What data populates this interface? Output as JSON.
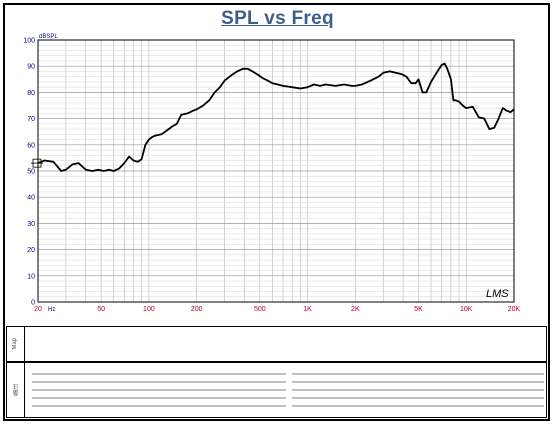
{
  "title": "SPL vs Freq",
  "logo_text": "LMS",
  "footer": {
    "row1_label": "Map",
    "row2_label": "备注"
  },
  "colors": {
    "title": "#3b5f8a",
    "grid": "#b8b8b8",
    "trace": "#000000",
    "x_ticks": "#b00020",
    "y_ticks": "#000080"
  },
  "chart_data": {
    "type": "line",
    "title": "SPL vs Freq",
    "xlabel": "Hz",
    "ylabel": "dBSPL",
    "xscale": "log",
    "xlim": [
      20,
      20000
    ],
    "ylim": [
      0,
      100
    ],
    "grid": true,
    "x_ticks": [
      {
        "value": 20,
        "label": "20"
      },
      {
        "value": 50,
        "label": "50"
      },
      {
        "value": 100,
        "label": "100"
      },
      {
        "value": 200,
        "label": "200"
      },
      {
        "value": 500,
        "label": "500"
      },
      {
        "value": 1000,
        "label": "1K"
      },
      {
        "value": 2000,
        "label": "2K"
      },
      {
        "value": 5000,
        "label": "5K"
      },
      {
        "value": 10000,
        "label": "10K"
      },
      {
        "value": 20000,
        "label": "20K"
      }
    ],
    "y_ticks": [
      0,
      10,
      20,
      30,
      40,
      50,
      60,
      70,
      80,
      90,
      100
    ],
    "x_unit_label": "Hz",
    "y_unit_label": "dBSPL",
    "series": [
      {
        "x": [
          20,
          22,
          25,
          28,
          30,
          33,
          36,
          40,
          44,
          48,
          52,
          56,
          60,
          65,
          70,
          75,
          80,
          85,
          90,
          95,
          100,
          105,
          110,
          120,
          130,
          140,
          150,
          160,
          175,
          190,
          200,
          220,
          240,
          260,
          280,
          300,
          330,
          360,
          390,
          420,
          450,
          480,
          520,
          560,
          600,
          650,
          700,
          800,
          900,
          1000,
          1100,
          1200,
          1300,
          1500,
          1700,
          1900,
          2000,
          2200,
          2500,
          2800,
          3000,
          3300,
          3600,
          3900,
          4200,
          4500,
          4800,
          5000,
          5300,
          5600,
          6000,
          6500,
          7000,
          7300,
          7600,
          8000,
          8300,
          8600,
          9000,
          9500,
          10000,
          11000,
          12000,
          13000,
          14000,
          15000,
          16000,
          17000,
          18000,
          19000,
          20000
        ],
        "y": [
          53,
          54,
          53.5,
          50,
          50.5,
          52.5,
          53,
          50.5,
          50,
          50.5,
          50,
          50.5,
          50,
          51,
          53,
          55.5,
          54,
          53.5,
          54.5,
          60,
          62,
          63,
          63.5,
          64,
          65.5,
          67,
          68,
          71.5,
          72,
          73,
          73.5,
          75,
          77,
          80,
          82,
          84.5,
          86.5,
          88,
          89,
          89,
          88,
          87,
          85.5,
          84.5,
          83.5,
          83,
          82.5,
          82,
          81.5,
          82,
          83,
          82.5,
          83,
          82.5,
          83,
          82.5,
          82.5,
          83,
          84.5,
          86,
          87.5,
          88,
          87.5,
          87,
          86,
          83.5,
          83.5,
          85,
          80,
          80,
          84,
          87.5,
          90.5,
          91,
          89,
          85,
          77,
          77,
          76.5,
          75,
          74,
          74.5,
          70.5,
          70,
          66,
          66.5,
          70,
          74,
          73,
          72.5,
          73.5
        ]
      }
    ]
  }
}
